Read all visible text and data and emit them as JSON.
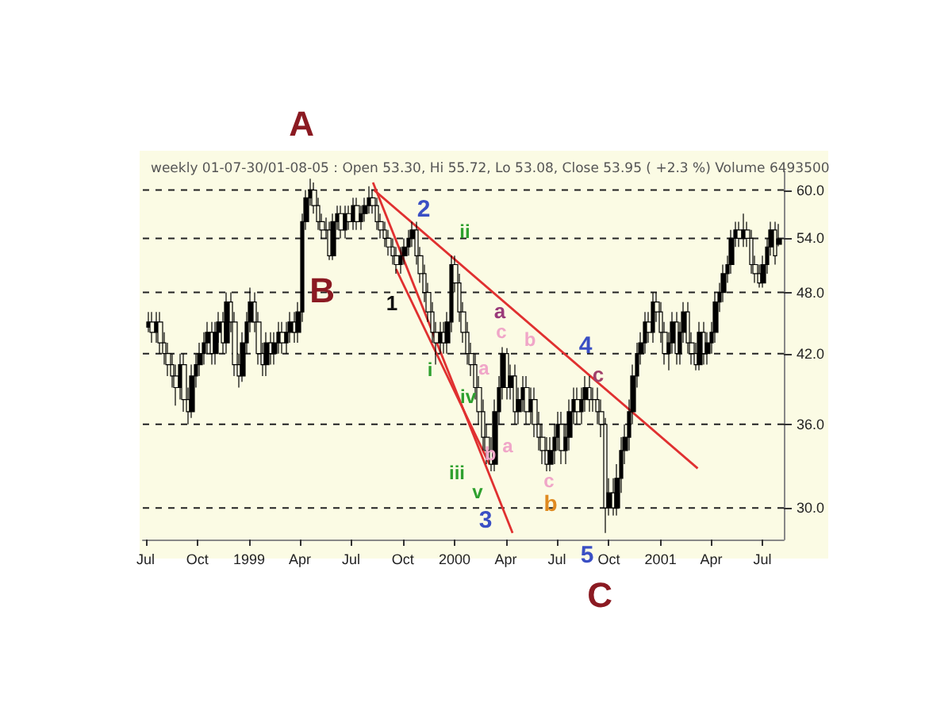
{
  "chart_data": {
    "type": "candlestick",
    "title": "weekly 01-07-30/01-08-05 : Open 53.30, Hi 55.72, Lo 53.08, Close 53.95 ( +2.3 %) Volume 6493500",
    "color": "#000000",
    "x": [
      "1998-07-06",
      "1998-07-13",
      "1998-07-20",
      "1998-07-27",
      "1998-08-03",
      "1998-08-10",
      "1998-08-17",
      "1998-08-24",
      "1998-08-31",
      "1998-09-07",
      "1998-09-14",
      "1998-09-21",
      "1998-09-28",
      "1998-10-05",
      "1998-10-12",
      "1998-10-19",
      "1998-10-26",
      "1998-11-02",
      "1998-11-09",
      "1998-11-16",
      "1998-11-23",
      "1998-11-30",
      "1998-12-07",
      "1998-12-14",
      "1998-12-21",
      "1998-12-28",
      "1999-01-04",
      "1999-01-11",
      "1999-01-18",
      "1999-01-25",
      "1999-02-01",
      "1999-02-08",
      "1999-02-15",
      "1999-02-22",
      "1999-03-01",
      "1999-03-08",
      "1999-03-15",
      "1999-03-22",
      "1999-03-29",
      "1999-04-05",
      "1999-04-12",
      "1999-04-19",
      "1999-04-26",
      "1999-05-03",
      "1999-05-10",
      "1999-05-17",
      "1999-05-24",
      "1999-05-31",
      "1999-06-07",
      "1999-06-14",
      "1999-06-21",
      "1999-06-28",
      "1999-07-05",
      "1999-07-12",
      "1999-07-19",
      "1999-07-26",
      "1999-08-02",
      "1999-08-09",
      "1999-08-16",
      "1999-08-23",
      "1999-08-30",
      "1999-09-06",
      "1999-09-13",
      "1999-09-20",
      "1999-09-27",
      "1999-10-04",
      "1999-10-11",
      "1999-10-18",
      "1999-10-25",
      "1999-11-01",
      "1999-11-08",
      "1999-11-15",
      "1999-11-22",
      "1999-11-29",
      "1999-12-06",
      "1999-12-13",
      "1999-12-20",
      "1999-12-27",
      "2000-01-03",
      "2000-01-10",
      "2000-01-17",
      "2000-01-24",
      "2000-01-31",
      "2000-02-07",
      "2000-02-14",
      "2000-02-21",
      "2000-02-28",
      "2000-03-06",
      "2000-03-13",
      "2000-03-20",
      "2000-03-27",
      "2000-04-03",
      "2000-04-10",
      "2000-04-17",
      "2000-04-24",
      "2000-05-01",
      "2000-05-08",
      "2000-05-15",
      "2000-05-22",
      "2000-05-29",
      "2000-06-05",
      "2000-06-12",
      "2000-06-19",
      "2000-06-26",
      "2000-07-03",
      "2000-07-10",
      "2000-07-17",
      "2000-07-24",
      "2000-07-31",
      "2000-08-07",
      "2000-08-14",
      "2000-08-21",
      "2000-08-28",
      "2000-09-04",
      "2000-09-11",
      "2000-09-18",
      "2000-09-25",
      "2000-10-02",
      "2000-10-09",
      "2000-10-16",
      "2000-10-23",
      "2000-10-30",
      "2000-11-06",
      "2000-11-13",
      "2000-11-20",
      "2000-11-27",
      "2000-12-04",
      "2000-12-11",
      "2000-12-18",
      "2000-12-25",
      "2001-01-01",
      "2001-01-08",
      "2001-01-15",
      "2001-01-22",
      "2001-01-29",
      "2001-02-05",
      "2001-02-12",
      "2001-02-19",
      "2001-02-26",
      "2001-03-05",
      "2001-03-12",
      "2001-03-19",
      "2001-03-26",
      "2001-04-02",
      "2001-04-09",
      "2001-04-16",
      "2001-04-23",
      "2001-04-30",
      "2001-05-07",
      "2001-05-14",
      "2001-05-21",
      "2001-05-28",
      "2001-06-04",
      "2001-06-11",
      "2001-06-18",
      "2001-06-25",
      "2001-07-02",
      "2001-07-09",
      "2001-07-16",
      "2001-07-23",
      "2001-07-30"
    ],
    "ohlc": [
      [
        44.5,
        46,
        44,
        45
      ],
      [
        45,
        46,
        43,
        44
      ],
      [
        44,
        46,
        43,
        45
      ],
      [
        45,
        46,
        42,
        43
      ],
      [
        43,
        44,
        41,
        42
      ],
      [
        42,
        43,
        40,
        41
      ],
      [
        41,
        42,
        39,
        40
      ],
      [
        40,
        41,
        37.5,
        39
      ],
      [
        39,
        42,
        38,
        41
      ],
      [
        41,
        42,
        37,
        38
      ],
      [
        38,
        39,
        36,
        37
      ],
      [
        37,
        41,
        36.5,
        40
      ],
      [
        40,
        42,
        39,
        41
      ],
      [
        41,
        43,
        40,
        42
      ],
      [
        42,
        44,
        41,
        43
      ],
      [
        43,
        45,
        42,
        44
      ],
      [
        44,
        45,
        41,
        42
      ],
      [
        42,
        45,
        41,
        44
      ],
      [
        44,
        46,
        43,
        45
      ],
      [
        45,
        46,
        42,
        43
      ],
      [
        43,
        48,
        42,
        47
      ],
      [
        47,
        48,
        44,
        45
      ],
      [
        45,
        46,
        40,
        41
      ],
      [
        41,
        42,
        39,
        40
      ],
      [
        40,
        44,
        39.5,
        43
      ],
      [
        43,
        46,
        42,
        45
      ],
      [
        45,
        48.5,
        44,
        47
      ],
      [
        47,
        48,
        44,
        45
      ],
      [
        45,
        46,
        41,
        42
      ],
      [
        42,
        43,
        40,
        41
      ],
      [
        41,
        44,
        40,
        43
      ],
      [
        43,
        44,
        41,
        42
      ],
      [
        42,
        44,
        41,
        43
      ],
      [
        43,
        45,
        42,
        44
      ],
      [
        44,
        45,
        42,
        43
      ],
      [
        43,
        45,
        42,
        44
      ],
      [
        44,
        46,
        43,
        45
      ],
      [
        45,
        46,
        43,
        44
      ],
      [
        44,
        47,
        43,
        46
      ],
      [
        46,
        57,
        45,
        56
      ],
      [
        56,
        60,
        55,
        59
      ],
      [
        59,
        61.5,
        58,
        60
      ],
      [
        60,
        61,
        57,
        58
      ],
      [
        58,
        59,
        55,
        56
      ],
      [
        56,
        57,
        54,
        55
      ],
      [
        55,
        56.5,
        54,
        55
      ],
      [
        55,
        56,
        51.5,
        52
      ],
      [
        52,
        57,
        51.5,
        56
      ],
      [
        56,
        58,
        55,
        57
      ],
      [
        57,
        58,
        54,
        55
      ],
      [
        55,
        58,
        54,
        57
      ],
      [
        57,
        58,
        55,
        56
      ],
      [
        56,
        59,
        55,
        58
      ],
      [
        58,
        59,
        55,
        56
      ],
      [
        56,
        58,
        55,
        57
      ],
      [
        57,
        59,
        56,
        58
      ],
      [
        58,
        60.5,
        57,
        59
      ],
      [
        59,
        60,
        57,
        58
      ],
      [
        58,
        59,
        55,
        56
      ],
      [
        56,
        57,
        54,
        55
      ],
      [
        55,
        56,
        53,
        54
      ],
      [
        54,
        55,
        52,
        53
      ],
      [
        53,
        54,
        51,
        52
      ],
      [
        52,
        53,
        50,
        51
      ],
      [
        51,
        53,
        50,
        52
      ],
      [
        52,
        54,
        51,
        53
      ],
      [
        53,
        55,
        52,
        54
      ],
      [
        54,
        56,
        53,
        55
      ],
      [
        55,
        56,
        51,
        52
      ],
      [
        52,
        53,
        49,
        50
      ],
      [
        50,
        51,
        47,
        48
      ],
      [
        48,
        49,
        45,
        46
      ],
      [
        46,
        47,
        43,
        44
      ],
      [
        44,
        45,
        41,
        43
      ],
      [
        43,
        45,
        42,
        44
      ],
      [
        44,
        45,
        42,
        43
      ],
      [
        43,
        46,
        42,
        45
      ],
      [
        45,
        52,
        44,
        51
      ],
      [
        51,
        52,
        48,
        49
      ],
      [
        49,
        50,
        45,
        46
      ],
      [
        46,
        47,
        43,
        44
      ],
      [
        44,
        45,
        41,
        42
      ],
      [
        42,
        43,
        40,
        41
      ],
      [
        41,
        42,
        38,
        39
      ],
      [
        39,
        40,
        36,
        37
      ],
      [
        37,
        38,
        34,
        35
      ],
      [
        35,
        36,
        33,
        34
      ],
      [
        34,
        35,
        32.5,
        33
      ],
      [
        33,
        38,
        32.5,
        37
      ],
      [
        37,
        40,
        36,
        39
      ],
      [
        39,
        42.6,
        38,
        42
      ],
      [
        42,
        42.5,
        38,
        39
      ],
      [
        39,
        41,
        38,
        40
      ],
      [
        40,
        41,
        36,
        37
      ],
      [
        37,
        39,
        36,
        38
      ],
      [
        38,
        40,
        37,
        39
      ],
      [
        39,
        40,
        36,
        37
      ],
      [
        37,
        39,
        36,
        38
      ],
      [
        38,
        39,
        35,
        36
      ],
      [
        36,
        37,
        34,
        35
      ],
      [
        35,
        36,
        33,
        34
      ],
      [
        34,
        35,
        32.5,
        33
      ],
      [
        33,
        35,
        32.5,
        34
      ],
      [
        34,
        36,
        33,
        35
      ],
      [
        35,
        37,
        34,
        36
      ],
      [
        36,
        37,
        33,
        34
      ],
      [
        34,
        36,
        33,
        35
      ],
      [
        35,
        38,
        34,
        37
      ],
      [
        37,
        39,
        36,
        38
      ],
      [
        38,
        39,
        36,
        37
      ],
      [
        37,
        39,
        36,
        38
      ],
      [
        38,
        40,
        37,
        39
      ],
      [
        39,
        40,
        37,
        38
      ],
      [
        38,
        39,
        37,
        38
      ],
      [
        38,
        39,
        36,
        37
      ],
      [
        37,
        38,
        35,
        36
      ],
      [
        36,
        36.5,
        28.4,
        30
      ],
      [
        30,
        32,
        29.5,
        31
      ],
      [
        31,
        32,
        29.5,
        30
      ],
      [
        30,
        33,
        29.5,
        32
      ],
      [
        32,
        35,
        31,
        34
      ],
      [
        34,
        36,
        33,
        35
      ],
      [
        35,
        38,
        34,
        37
      ],
      [
        37,
        41,
        36,
        40
      ],
      [
        40,
        43,
        39,
        42
      ],
      [
        42,
        44,
        41,
        43
      ],
      [
        43,
        46,
        42,
        45
      ],
      [
        45,
        46,
        43,
        44
      ],
      [
        44,
        48,
        43,
        47
      ],
      [
        47,
        48,
        45,
        46
      ],
      [
        46,
        47,
        43,
        44
      ],
      [
        44,
        45,
        41,
        42
      ],
      [
        42,
        44,
        40.5,
        43
      ],
      [
        43,
        46,
        42,
        45
      ],
      [
        45,
        46,
        41,
        42
      ],
      [
        42,
        45,
        41,
        44
      ],
      [
        44,
        47,
        43,
        46
      ],
      [
        46,
        47,
        42,
        43
      ],
      [
        43,
        44,
        41,
        42
      ],
      [
        42,
        43,
        40.5,
        41
      ],
      [
        41,
        45,
        40.5,
        44
      ],
      [
        44,
        45,
        41,
        42
      ],
      [
        42,
        44,
        41,
        43
      ],
      [
        43,
        45,
        42,
        44
      ],
      [
        44,
        48,
        43,
        47
      ],
      [
        47,
        49,
        46,
        48
      ],
      [
        48,
        51,
        47,
        50
      ],
      [
        50,
        52,
        49,
        51
      ],
      [
        51,
        55,
        50,
        54
      ],
      [
        54,
        56,
        53,
        55
      ],
      [
        55,
        56,
        53,
        54
      ],
      [
        54,
        57,
        53,
        55
      ],
      [
        55,
        56,
        53,
        54
      ],
      [
        54,
        55,
        50,
        51
      ],
      [
        51,
        52,
        49,
        50
      ],
      [
        50,
        51,
        48.5,
        49
      ],
      [
        49,
        52,
        48.5,
        51
      ],
      [
        51,
        54,
        50,
        53
      ],
      [
        53,
        56,
        52,
        55
      ],
      [
        55,
        56,
        51,
        52
      ],
      [
        53.3,
        55.72,
        53.08,
        53.95
      ]
    ],
    "series": [
      {
        "type": "line",
        "color": "#e03030",
        "x": [
          "1999-08-11",
          "2001-03-08"
        ],
        "values": [
          60,
          32.7
        ]
      },
      {
        "type": "line",
        "color": "#e03030",
        "x": [
          "1999-08-09",
          "2000-04-13"
        ],
        "values": [
          61,
          28.4
        ]
      },
      {
        "type": "line",
        "color": "#e03030",
        "x": [
          "1999-09-19",
          "2000-03-03"
        ],
        "values": [
          50.5,
          33
        ]
      }
    ],
    "xlim": [
      "1998-06-26",
      "2001-08-08"
    ],
    "xticks": [
      {
        "value": "1998-07-01",
        "label": "Jul"
      },
      {
        "value": "1998-10-01",
        "label": "Oct"
      },
      {
        "value": "1999-01-01",
        "label": "1999"
      },
      {
        "value": "1999-04-01",
        "label": "Apr"
      },
      {
        "value": "1999-07-01",
        "label": "Jul"
      },
      {
        "value": "1999-10-01",
        "label": "Oct"
      },
      {
        "value": "2000-01-01",
        "label": "2000"
      },
      {
        "value": "2000-04-01",
        "label": "Apr"
      },
      {
        "value": "2000-07-01",
        "label": "Jul"
      },
      {
        "value": "2000-10-01",
        "label": "Oct"
      },
      {
        "value": "2001-01-01",
        "label": "2001"
      },
      {
        "value": "2001-04-01",
        "label": "Apr"
      },
      {
        "value": "2001-07-01",
        "label": "Jul"
      }
    ],
    "ylim": [
      28,
      62.5
    ],
    "log": true,
    "yticks": [
      {
        "value": 30,
        "label": "30.0"
      },
      {
        "value": 36,
        "label": "36.0"
      },
      {
        "value": 42,
        "label": "42.0"
      },
      {
        "value": 48,
        "label": "48.0"
      },
      {
        "value": 54,
        "label": "54.0"
      },
      {
        "value": 60,
        "label": "60.0"
      }
    ],
    "grid": "y",
    "annotations": [
      "A",
      "B",
      "1",
      "2",
      "ii",
      "i",
      "a",
      "c",
      "b",
      "4",
      "c",
      "a",
      "iv",
      "b",
      "a",
      "iii",
      "v",
      "3",
      "c",
      "b",
      "5",
      "C"
    ]
  }
}
